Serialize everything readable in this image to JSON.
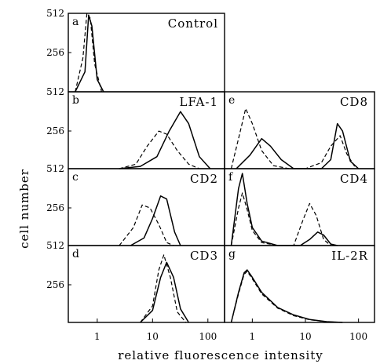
{
  "figure": {
    "ylabel": "cell number",
    "xlabel": "relative fluorescence intensity",
    "xscale": "log",
    "xlim": [
      0.3,
      200
    ],
    "ylim": [
      0,
      512
    ]
  },
  "chart_data": [
    {
      "type": "line",
      "panel": "a",
      "title": "Control",
      "yticks": [
        "512",
        "256",
        "512"
      ],
      "xticks": [],
      "series": [
        {
          "style": "solid",
          "x": [
            0.4,
            0.6,
            0.7,
            0.8,
            1.0,
            1.3
          ],
          "y": [
            0,
            130,
            500,
            430,
            80,
            0
          ]
        },
        {
          "style": "dashed",
          "x": [
            0.4,
            0.55,
            0.65,
            0.75,
            0.9,
            1.2
          ],
          "y": [
            0,
            220,
            512,
            480,
            180,
            0
          ]
        }
      ]
    },
    {
      "type": "line",
      "panel": "b",
      "title": "LFA-1",
      "yticks": [
        "256",
        "512"
      ],
      "xticks": [],
      "series": [
        {
          "style": "solid",
          "x": [
            2.5,
            6,
            12,
            20,
            32,
            45,
            70,
            110
          ],
          "y": [
            0,
            15,
            80,
            250,
            380,
            300,
            80,
            0
          ]
        },
        {
          "style": "dashed",
          "x": [
            2.5,
            5,
            8,
            13,
            18,
            28,
            45,
            70
          ],
          "y": [
            0,
            30,
            150,
            250,
            230,
            120,
            30,
            0
          ]
        }
      ]
    },
    {
      "type": "line",
      "panel": "c",
      "title": "CD2",
      "yticks": [
        "256",
        "512"
      ],
      "xticks": [],
      "series": [
        {
          "style": "solid",
          "x": [
            4,
            7,
            10,
            14,
            18,
            25,
            32
          ],
          "y": [
            0,
            50,
            180,
            330,
            310,
            90,
            0
          ]
        },
        {
          "style": "dashed",
          "x": [
            2.5,
            4.5,
            6.5,
            9,
            13,
            18,
            24
          ],
          "y": [
            0,
            120,
            270,
            250,
            140,
            20,
            0
          ]
        }
      ]
    },
    {
      "type": "line",
      "panel": "d",
      "title": "CD3",
      "yticks": [
        "256"
      ],
      "xticks": [
        "1",
        "10",
        "100"
      ],
      "series": [
        {
          "style": "solid",
          "x": [
            6,
            10,
            14,
            18,
            24,
            32,
            45
          ],
          "y": [
            0,
            80,
            300,
            400,
            300,
            90,
            0
          ]
        },
        {
          "style": "dashed",
          "x": [
            6,
            10,
            13,
            16,
            21,
            28,
            40
          ],
          "y": [
            0,
            110,
            350,
            450,
            300,
            70,
            0
          ]
        }
      ]
    },
    {
      "type": "line",
      "panel": "e",
      "title": "CD8",
      "yticks": [],
      "xticks": [],
      "series": [
        {
          "style": "solid",
          "x": [
            0.5,
            0.9,
            1.5,
            2.2,
            3.5,
            6,
            10,
            20,
            30,
            40,
            50,
            70,
            100
          ],
          "y": [
            0,
            90,
            200,
            150,
            60,
            0,
            0,
            0,
            60,
            300,
            250,
            50,
            0
          ]
        },
        {
          "style": "dashed",
          "x": [
            0.4,
            0.55,
            0.75,
            1.0,
            1.5,
            2.5,
            5,
            10,
            20,
            30,
            45,
            60,
            90
          ],
          "y": [
            0,
            200,
            400,
            300,
            120,
            20,
            0,
            0,
            40,
            150,
            220,
            100,
            0
          ]
        }
      ]
    },
    {
      "type": "line",
      "panel": "f",
      "title": "CD4",
      "yticks": [],
      "xticks": [],
      "series": [
        {
          "style": "solid",
          "x": [
            0.4,
            0.55,
            0.65,
            0.8,
            1.0,
            1.5,
            3,
            8,
            12,
            17,
            22,
            30,
            40
          ],
          "y": [
            0,
            380,
            480,
            280,
            120,
            30,
            0,
            0,
            40,
            90,
            70,
            10,
            0
          ]
        },
        {
          "style": "dashed",
          "x": [
            0.4,
            0.55,
            0.65,
            0.8,
            1.0,
            1.5,
            3,
            6,
            9,
            12,
            16,
            22,
            30
          ],
          "y": [
            0,
            250,
            350,
            240,
            100,
            20,
            0,
            0,
            170,
            280,
            200,
            40,
            0
          ]
        }
      ]
    },
    {
      "type": "line",
      "panel": "g",
      "title": "IL-2R",
      "yticks": [],
      "xticks": [
        "1",
        "10",
        "100"
      ],
      "series": [
        {
          "style": "solid",
          "x": [
            0.4,
            0.55,
            0.7,
            0.8,
            1.0,
            1.5,
            3,
            6,
            12,
            25,
            50
          ],
          "y": [
            0,
            200,
            330,
            350,
            300,
            200,
            100,
            50,
            20,
            5,
            0
          ]
        },
        {
          "style": "dashed",
          "x": [
            0.4,
            0.55,
            0.7,
            0.8,
            1.0,
            1.5,
            3,
            6,
            12,
            25,
            50
          ],
          "y": [
            0,
            190,
            320,
            340,
            290,
            190,
            95,
            45,
            18,
            4,
            0
          ]
        }
      ]
    }
  ]
}
